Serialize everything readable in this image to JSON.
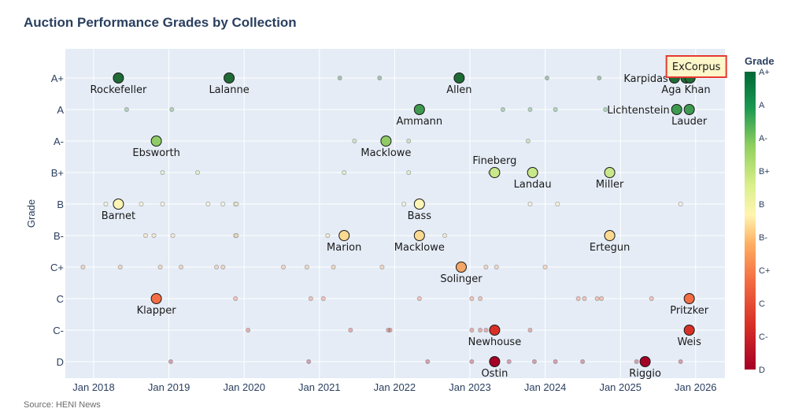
{
  "chart_data": {
    "type": "scatter",
    "title": "Auction Performance Grades by Collection",
    "ylabel": "Grade",
    "source": "Source: HENI News",
    "grades": [
      "D",
      "C-",
      "C",
      "C+",
      "B-",
      "B",
      "B+",
      "A-",
      "A",
      "A+"
    ],
    "x_ticks": [
      "Jan 2018",
      "Jan 2019",
      "Jan 2020",
      "Jan 2021",
      "Jan 2022",
      "Jan 2023",
      "Jan 2024",
      "Jan 2025",
      "Jan 2026"
    ],
    "colorbar": {
      "title": "Grade",
      "ticks": [
        "D",
        "C-",
        "C",
        "C+",
        "B-",
        "B",
        "B+",
        "A-",
        "A",
        "A+"
      ]
    },
    "annotation": {
      "text": "ExCorpus",
      "date": "2025-10-20",
      "grade": "A+"
    },
    "labeled_points": [
      {
        "name": "Rockefeller",
        "date": "2018-05-01",
        "grade": "A+"
      },
      {
        "name": "Lalanne",
        "date": "2019-10-20",
        "grade": "A+"
      },
      {
        "name": "Allen",
        "date": "2022-11-10",
        "grade": "A+"
      },
      {
        "name": "Karpidas",
        "date": "2025-09-20",
        "grade": "A+"
      },
      {
        "name": "Aga Khan",
        "date": "2025-11-15",
        "grade": "A+"
      },
      {
        "name": "",
        "date": "2025-12-05",
        "grade": "A+"
      },
      {
        "name": "Ammann",
        "date": "2022-05-01",
        "grade": "A"
      },
      {
        "name": "Lichtenstein",
        "date": "2025-10-01",
        "grade": "A"
      },
      {
        "name": "Lauder",
        "date": "2025-12-01",
        "grade": "A"
      },
      {
        "name": "Ebsworth",
        "date": "2018-11-01",
        "grade": "A-"
      },
      {
        "name": "Macklowe",
        "date": "2021-11-20",
        "grade": "A-"
      },
      {
        "name": "Fineberg",
        "date": "2023-05-01",
        "grade": "B+"
      },
      {
        "name": "Landau",
        "date": "2023-11-01",
        "grade": "B+"
      },
      {
        "name": "Miller",
        "date": "2024-11-10",
        "grade": "B+"
      },
      {
        "name": "Barnet",
        "date": "2018-05-01",
        "grade": "B"
      },
      {
        "name": "Bass",
        "date": "2022-05-01",
        "grade": "B"
      },
      {
        "name": "Marion",
        "date": "2021-05-01",
        "grade": "B-"
      },
      {
        "name": "Macklowe",
        "date": "2022-05-01",
        "grade": "B-"
      },
      {
        "name": "Ertegun",
        "date": "2024-11-10",
        "grade": "B-"
      },
      {
        "name": "Solinger",
        "date": "2022-11-20",
        "grade": "C+"
      },
      {
        "name": "Klapper",
        "date": "2018-11-01",
        "grade": "C"
      },
      {
        "name": "Pritzker",
        "date": "2025-12-01",
        "grade": "C"
      },
      {
        "name": "Newhouse",
        "date": "2023-05-01",
        "grade": "C-"
      },
      {
        "name": "Weis",
        "date": "2025-12-01",
        "grade": "C-"
      },
      {
        "name": "Ostin",
        "date": "2023-05-01",
        "grade": "D"
      },
      {
        "name": "Riggio",
        "date": "2025-05-01",
        "grade": "D"
      }
    ],
    "minor_points": [
      {
        "date": "2018-06-10",
        "grade": "A"
      },
      {
        "date": "2019-01-15",
        "grade": "A"
      },
      {
        "date": "2023-06-10",
        "grade": "A"
      },
      {
        "date": "2023-10-20",
        "grade": "A"
      },
      {
        "date": "2024-02-20",
        "grade": "A"
      },
      {
        "date": "2024-10-20",
        "grade": "A"
      },
      {
        "date": "2021-04-10",
        "grade": "A+"
      },
      {
        "date": "2021-10-20",
        "grade": "A+"
      },
      {
        "date": "2024-01-10",
        "grade": "A+"
      },
      {
        "date": "2024-09-20",
        "grade": "A+"
      },
      {
        "date": "2021-06-20",
        "grade": "A-"
      },
      {
        "date": "2021-12-01",
        "grade": "A-"
      },
      {
        "date": "2022-03-10",
        "grade": "A-"
      },
      {
        "date": "2023-10-10",
        "grade": "A-"
      },
      {
        "date": "2018-12-01",
        "grade": "B+"
      },
      {
        "date": "2019-05-20",
        "grade": "B+"
      },
      {
        "date": "2021-05-01",
        "grade": "B+"
      },
      {
        "date": "2022-03-10",
        "grade": "B+"
      },
      {
        "date": "2023-04-10",
        "grade": "B+"
      },
      {
        "date": "2018-03-01",
        "grade": "B"
      },
      {
        "date": "2018-08-20",
        "grade": "B"
      },
      {
        "date": "2018-12-01",
        "grade": "B"
      },
      {
        "date": "2019-07-10",
        "grade": "B"
      },
      {
        "date": "2019-09-20",
        "grade": "B"
      },
      {
        "date": "2019-11-20",
        "grade": "B"
      },
      {
        "date": "2019-11-25",
        "grade": "B"
      },
      {
        "date": "2022-02-15",
        "grade": "B"
      },
      {
        "date": "2023-10-20",
        "grade": "B"
      },
      {
        "date": "2024-03-01",
        "grade": "B"
      },
      {
        "date": "2025-10-20",
        "grade": "B"
      },
      {
        "date": "2018-09-10",
        "grade": "B-"
      },
      {
        "date": "2018-10-20",
        "grade": "B-"
      },
      {
        "date": "2019-01-20",
        "grade": "B-"
      },
      {
        "date": "2019-11-20",
        "grade": "B-"
      },
      {
        "date": "2019-11-25",
        "grade": "B-"
      },
      {
        "date": "2021-02-10",
        "grade": "B-"
      },
      {
        "date": "2022-09-01",
        "grade": "B-"
      },
      {
        "date": "2024-10-25",
        "grade": "B-"
      },
      {
        "date": "2017-11-10",
        "grade": "C+"
      },
      {
        "date": "2018-05-10",
        "grade": "C+"
      },
      {
        "date": "2018-11-20",
        "grade": "C+"
      },
      {
        "date": "2019-03-01",
        "grade": "C+"
      },
      {
        "date": "2019-08-20",
        "grade": "C+"
      },
      {
        "date": "2019-09-20",
        "grade": "C+"
      },
      {
        "date": "2020-07-10",
        "grade": "C+"
      },
      {
        "date": "2020-11-01",
        "grade": "C+"
      },
      {
        "date": "2021-03-10",
        "grade": "C+"
      },
      {
        "date": "2021-11-01",
        "grade": "C+"
      },
      {
        "date": "2023-03-20",
        "grade": "C+"
      },
      {
        "date": "2023-05-10",
        "grade": "C+"
      },
      {
        "date": "2024-01-01",
        "grade": "C+"
      },
      {
        "date": "2019-11-20",
        "grade": "C"
      },
      {
        "date": "2020-11-20",
        "grade": "C"
      },
      {
        "date": "2021-01-20",
        "grade": "C"
      },
      {
        "date": "2022-05-01",
        "grade": "C"
      },
      {
        "date": "2023-01-10",
        "grade": "C"
      },
      {
        "date": "2023-02-20",
        "grade": "C"
      },
      {
        "date": "2024-06-10",
        "grade": "C"
      },
      {
        "date": "2024-07-10",
        "grade": "C"
      },
      {
        "date": "2024-09-10",
        "grade": "C"
      },
      {
        "date": "2024-10-01",
        "grade": "C"
      },
      {
        "date": "2025-06-01",
        "grade": "C"
      },
      {
        "date": "2020-01-20",
        "grade": "C-"
      },
      {
        "date": "2021-06-01",
        "grade": "C-"
      },
      {
        "date": "2021-12-01",
        "grade": "C-"
      },
      {
        "date": "2021-12-10",
        "grade": "C-"
      },
      {
        "date": "2023-01-10",
        "grade": "C-"
      },
      {
        "date": "2023-02-20",
        "grade": "C-"
      },
      {
        "date": "2023-03-20",
        "grade": "C-"
      },
      {
        "date": "2023-10-20",
        "grade": "C-"
      },
      {
        "date": "2019-01-10",
        "grade": "D"
      },
      {
        "date": "2020-11-10",
        "grade": "D"
      },
      {
        "date": "2022-06-10",
        "grade": "D"
      },
      {
        "date": "2023-01-10",
        "grade": "D"
      },
      {
        "date": "2023-07-10",
        "grade": "D"
      },
      {
        "date": "2023-11-10",
        "grade": "D"
      },
      {
        "date": "2024-02-20",
        "grade": "D"
      },
      {
        "date": "2024-07-01",
        "grade": "D"
      },
      {
        "date": "2025-03-20",
        "grade": "D"
      },
      {
        "date": "2025-10-20",
        "grade": "D"
      }
    ]
  }
}
